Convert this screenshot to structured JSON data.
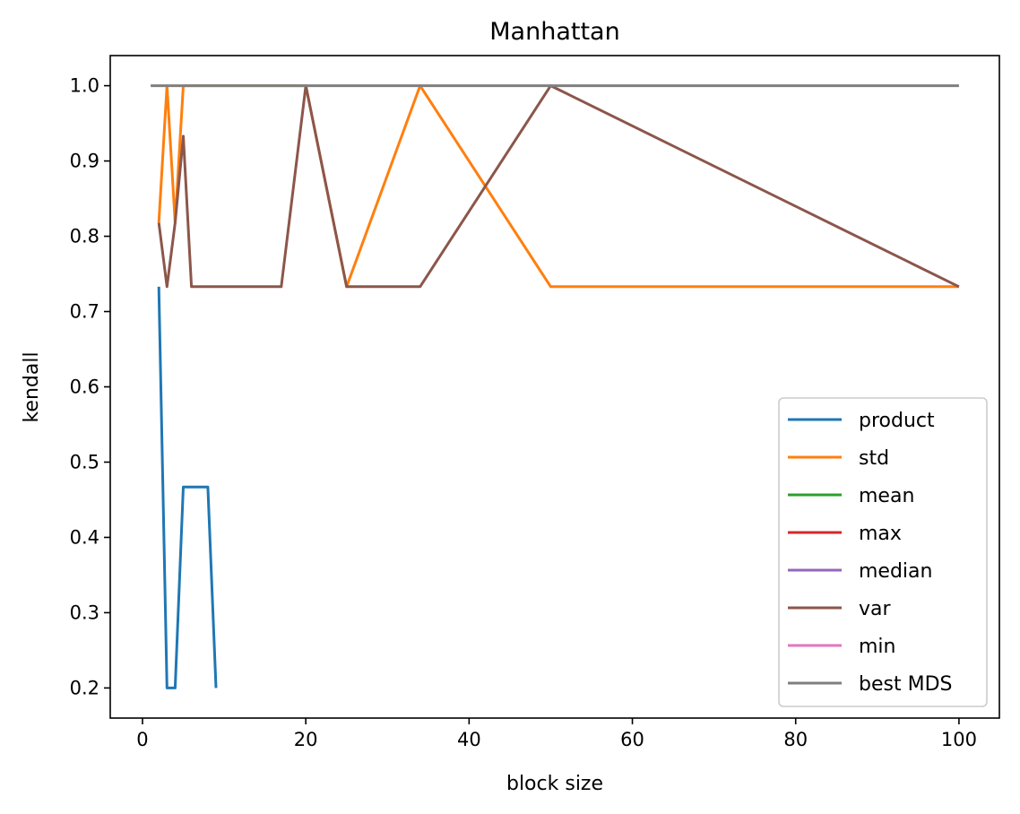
{
  "chart_data": {
    "type": "line",
    "title": "Manhattan",
    "xlabel": "block size",
    "ylabel": "kendall",
    "xlim": [
      -3.95,
      104.95
    ],
    "ylim": [
      0.16,
      1.04
    ],
    "xticks": [
      0,
      20,
      40,
      60,
      80,
      100
    ],
    "yticks": [
      0.2,
      0.3,
      0.4,
      0.5,
      0.6,
      0.7,
      0.8,
      0.9,
      1.0
    ],
    "xtick_labels": [
      "0",
      "20",
      "40",
      "60",
      "80",
      "100"
    ],
    "ytick_labels": [
      "0.2",
      "0.3",
      "0.4",
      "0.5",
      "0.6",
      "0.7",
      "0.8",
      "0.9",
      "1.0"
    ],
    "grid": false,
    "legend_position": "lower right",
    "series": [
      {
        "name": "product",
        "color": "#1f77b4",
        "x": [
          2,
          3,
          4,
          5,
          6,
          7,
          8,
          9
        ],
        "y": [
          0.733,
          0.2,
          0.2,
          0.467,
          0.467,
          0.467,
          0.467,
          0.2
        ]
      },
      {
        "name": "std",
        "color": "#ff7f0e",
        "x": [
          2,
          3,
          4,
          5,
          6,
          17,
          20,
          25,
          34,
          50,
          100
        ],
        "y": [
          0.818,
          1.0,
          0.818,
          1.0,
          1.0,
          1.0,
          1.0,
          0.733,
          1.0,
          0.733,
          0.733
        ]
      },
      {
        "name": "mean",
        "color": "#2ca02c",
        "x": [],
        "y": []
      },
      {
        "name": "max",
        "color": "#d62728",
        "x": [],
        "y": []
      },
      {
        "name": "median",
        "color": "#9467bd",
        "x": [],
        "y": []
      },
      {
        "name": "var",
        "color": "#8c564b",
        "x": [
          2,
          3,
          4,
          5,
          6,
          17,
          20,
          25,
          34,
          50,
          100
        ],
        "y": [
          0.818,
          0.733,
          0.818,
          0.933,
          0.733,
          0.733,
          1.0,
          0.733,
          0.733,
          1.0,
          0.733
        ]
      },
      {
        "name": "min",
        "color": "#e377c2",
        "x": [],
        "y": []
      },
      {
        "name": "best MDS",
        "color": "#7f7f7f",
        "x": [
          1,
          100
        ],
        "y": [
          1.0,
          1.0
        ]
      }
    ]
  }
}
